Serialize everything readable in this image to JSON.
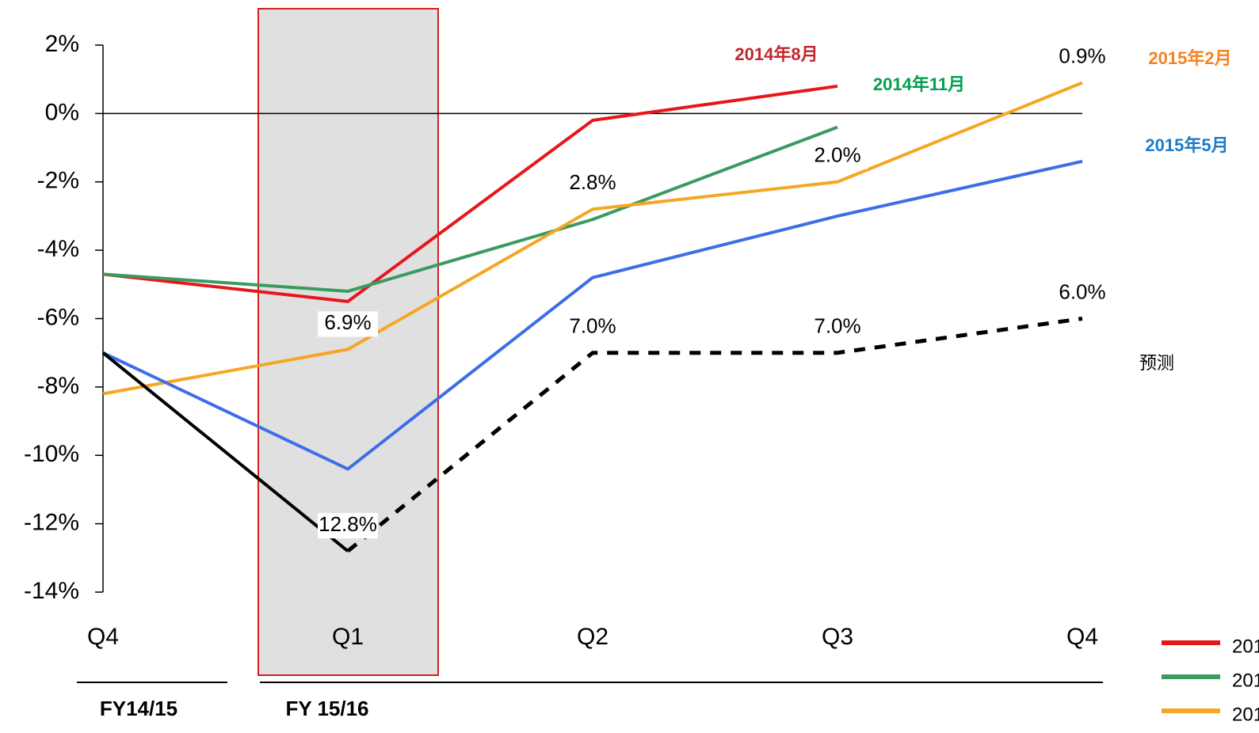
{
  "chart_data": {
    "type": "line",
    "categories": [
      "Q4",
      "Q1",
      "Q2",
      "Q3",
      "Q4"
    ],
    "groups": [
      {
        "label": "FY14/15"
      },
      {
        "label": "FY 15/16"
      }
    ],
    "ylim": [
      2,
      -14
    ],
    "yticks": [
      {
        "value": 2,
        "label": "2%"
      },
      {
        "value": 0,
        "label": "0%"
      },
      {
        "value": -2,
        "label": "-2%"
      },
      {
        "value": -4,
        "label": "-4%"
      },
      {
        "value": -6,
        "label": "-6%"
      },
      {
        "value": -8,
        "label": "-8%"
      },
      {
        "value": -10,
        "label": "-10%"
      },
      {
        "value": -12,
        "label": "-12%"
      },
      {
        "value": -14,
        "label": "-14%"
      }
    ],
    "series": [
      {
        "name": "2014年8月",
        "color": "#e8161b",
        "label_color": "#c0282d",
        "values": [
          -4.7,
          -5.5,
          -0.2,
          0.8,
          null
        ]
      },
      {
        "name": "2014年11月",
        "color": "#3a9a60",
        "label_color": "#00a050",
        "values": [
          -4.7,
          -5.2,
          -3.1,
          -0.4,
          null
        ]
      },
      {
        "name": "2015年2月",
        "color": "#f5a623",
        "label_color": "#f58220",
        "values": [
          -8.2,
          -6.9,
          -2.8,
          -2.0,
          0.9
        ],
        "value_labels": [
          null,
          "6.9%",
          "2.8%",
          "2.0%",
          "0.9%"
        ]
      },
      {
        "name": "2015年5月",
        "color": "#3d6ee8",
        "label_color": "#1f7ac8",
        "values": [
          -7.0,
          -10.4,
          -4.8,
          -3.0,
          -1.4
        ]
      },
      {
        "color": "#000000",
        "values": [
          -7.0,
          -12.8,
          null,
          null,
          null
        ]
      },
      {
        "name": "预测",
        "color": "#000000",
        "dashed": true,
        "values": [
          null,
          -12.8,
          -7.0,
          -7.0,
          -6.0
        ],
        "value_labels": [
          null,
          "12.8%",
          "7.0%",
          "7.0%",
          "6.0%"
        ]
      }
    ]
  }
}
